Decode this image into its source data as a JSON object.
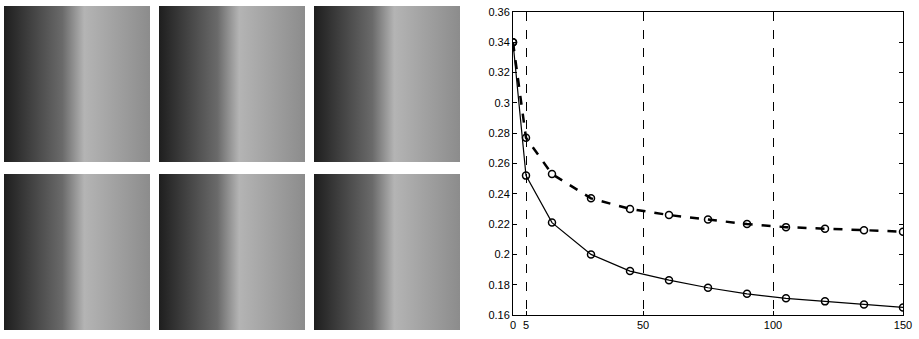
{
  "chart_data": {
    "type": "line",
    "x": [
      0,
      5,
      15,
      30,
      45,
      60,
      75,
      90,
      105,
      120,
      135,
      150
    ],
    "series": [
      {
        "color": "#000000",
        "line_style": "dashed",
        "marker": "circle-open",
        "values": [
          0.34,
          0.277,
          0.253,
          0.237,
          0.23,
          0.226,
          0.223,
          0.22,
          0.218,
          0.217,
          0.216,
          0.215
        ]
      },
      {
        "color": "#000000",
        "line_style": "solid",
        "marker": "circle-open",
        "values": [
          0.34,
          0.252,
          0.221,
          0.2,
          0.189,
          0.183,
          0.178,
          0.174,
          0.171,
          0.169,
          0.167,
          0.165
        ]
      }
    ],
    "xlim": [
      0,
      150
    ],
    "xticks": [
      0,
      5,
      50,
      100,
      150
    ],
    "ylim": [
      0.16,
      0.36
    ],
    "yticks": [
      0.16,
      0.18,
      0.2,
      0.22,
      0.24,
      0.26,
      0.28,
      0.3,
      0.32,
      0.34,
      0.36
    ],
    "grid": true
  }
}
